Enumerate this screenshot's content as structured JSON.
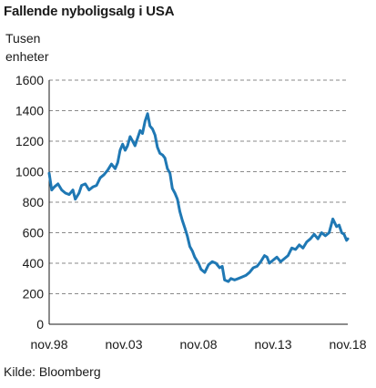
{
  "chart_data": {
    "type": "line",
    "title": "Fallende nyboligsalg i USA",
    "ylabel_lines": [
      "Tusen",
      "enheter"
    ],
    "source": "Kilde: Bloomberg",
    "ylim": [
      0,
      1600
    ],
    "yticks": [
      0,
      200,
      400,
      600,
      800,
      1000,
      1200,
      1400,
      1600
    ],
    "xlim": [
      1998.83,
      2018.83
    ],
    "xticks": [
      {
        "x": 1998.83,
        "label": "nov.98"
      },
      {
        "x": 2003.83,
        "label": "nov.03"
      },
      {
        "x": 2008.83,
        "label": "nov.08"
      },
      {
        "x": 2013.83,
        "label": "nov.13"
      },
      {
        "x": 2018.83,
        "label": "nov.18"
      }
    ],
    "grid": "horizontal-dashed",
    "series": [
      {
        "color": "#1f78b4",
        "points": [
          [
            1998.83,
            990
          ],
          [
            1999.0,
            880
          ],
          [
            1999.17,
            900
          ],
          [
            1999.42,
            920
          ],
          [
            1999.67,
            880
          ],
          [
            1999.92,
            860
          ],
          [
            2000.17,
            850
          ],
          [
            2000.42,
            880
          ],
          [
            2000.58,
            820
          ],
          [
            2000.83,
            860
          ],
          [
            2001.0,
            910
          ],
          [
            2001.25,
            920
          ],
          [
            2001.5,
            880
          ],
          [
            2001.75,
            900
          ],
          [
            2002.0,
            910
          ],
          [
            2002.25,
            960
          ],
          [
            2002.5,
            980
          ],
          [
            2002.75,
            1010
          ],
          [
            2003.0,
            1050
          ],
          [
            2003.25,
            1020
          ],
          [
            2003.42,
            1060
          ],
          [
            2003.58,
            1140
          ],
          [
            2003.75,
            1180
          ],
          [
            2003.92,
            1140
          ],
          [
            2004.08,
            1170
          ],
          [
            2004.25,
            1230
          ],
          [
            2004.42,
            1200
          ],
          [
            2004.58,
            1170
          ],
          [
            2004.75,
            1220
          ],
          [
            2004.92,
            1270
          ],
          [
            2005.08,
            1250
          ],
          [
            2005.25,
            1330
          ],
          [
            2005.42,
            1380
          ],
          [
            2005.58,
            1300
          ],
          [
            2005.75,
            1280
          ],
          [
            2005.92,
            1240
          ],
          [
            2006.08,
            1160
          ],
          [
            2006.25,
            1120
          ],
          [
            2006.42,
            1110
          ],
          [
            2006.58,
            1090
          ],
          [
            2006.75,
            1020
          ],
          [
            2006.92,
            990
          ],
          [
            2007.08,
            890
          ],
          [
            2007.25,
            860
          ],
          [
            2007.42,
            820
          ],
          [
            2007.58,
            740
          ],
          [
            2007.75,
            680
          ],
          [
            2007.92,
            630
          ],
          [
            2008.08,
            580
          ],
          [
            2008.25,
            510
          ],
          [
            2008.42,
            480
          ],
          [
            2008.58,
            440
          ],
          [
            2008.83,
            400
          ],
          [
            2009.0,
            360
          ],
          [
            2009.25,
            340
          ],
          [
            2009.5,
            390
          ],
          [
            2009.75,
            410
          ],
          [
            2010.0,
            400
          ],
          [
            2010.25,
            370
          ],
          [
            2010.42,
            380
          ],
          [
            2010.58,
            290
          ],
          [
            2010.83,
            280
          ],
          [
            2011.0,
            300
          ],
          [
            2011.25,
            290
          ],
          [
            2011.5,
            300
          ],
          [
            2011.75,
            310
          ],
          [
            2012.0,
            320
          ],
          [
            2012.25,
            340
          ],
          [
            2012.5,
            370
          ],
          [
            2012.75,
            380
          ],
          [
            2013.0,
            410
          ],
          [
            2013.25,
            450
          ],
          [
            2013.42,
            440
          ],
          [
            2013.58,
            400
          ],
          [
            2013.83,
            420
          ],
          [
            2014.08,
            440
          ],
          [
            2014.33,
            410
          ],
          [
            2014.58,
            430
          ],
          [
            2014.83,
            450
          ],
          [
            2015.08,
            500
          ],
          [
            2015.33,
            490
          ],
          [
            2015.58,
            520
          ],
          [
            2015.83,
            500
          ],
          [
            2016.08,
            540
          ],
          [
            2016.33,
            560
          ],
          [
            2016.58,
            590
          ],
          [
            2016.83,
            560
          ],
          [
            2017.08,
            600
          ],
          [
            2017.33,
            580
          ],
          [
            2017.58,
            600
          ],
          [
            2017.83,
            690
          ],
          [
            2018.08,
            640
          ],
          [
            2018.25,
            650
          ],
          [
            2018.42,
            600
          ],
          [
            2018.58,
            590
          ],
          [
            2018.75,
            550
          ],
          [
            2018.83,
            560
          ]
        ]
      }
    ]
  }
}
